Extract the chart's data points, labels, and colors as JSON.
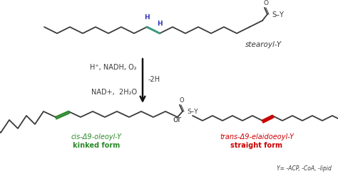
{
  "bg_color": "#ffffff",
  "stearoyl_label": "stearoyl-Y",
  "reaction_left1": "H⁺, NADH, O₂",
  "reaction_right": "-2H",
  "reaction_left2": "NAD+,  2H₂O",
  "cis_label1": "cis-Δ9-oleoyl-Y",
  "cis_label2": "kinked form",
  "trans_label1": "trans-Δ9-elaidoeoyl-Y",
  "trans_label2": "straight form",
  "or_text": "or",
  "footnote": "Y= -ACP, -CoA, -lipid",
  "green_color": "#2a8a2a",
  "red_color": "#cc0000",
  "blue_color": "#3333bb",
  "teal_color": "#3a9a7a",
  "chain_color": "#3a3a3a",
  "arrow_color": "#111111"
}
